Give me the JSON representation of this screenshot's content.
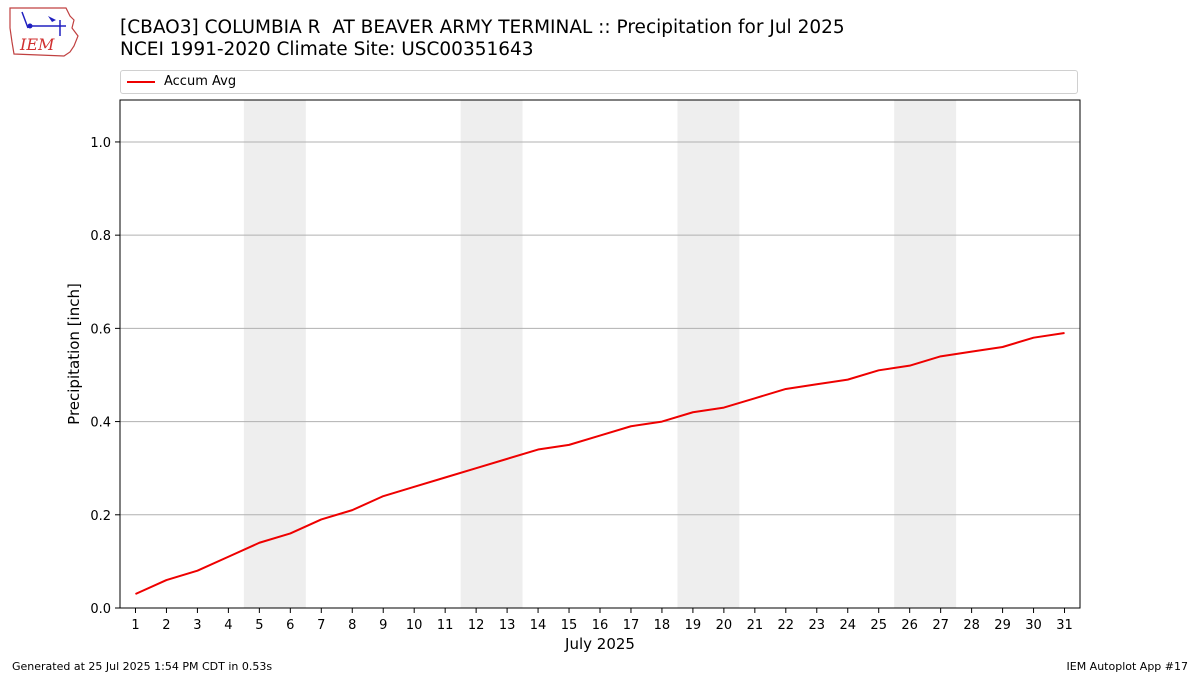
{
  "header": {
    "title_line1": "[CBAO3] COLUMBIA R  AT BEAVER ARMY TERMINAL :: Precipitation for Jul 2025",
    "title_line2": "NCEI 1991-2020 Climate Site: USC00351643",
    "logo_text": "IEM"
  },
  "footer": {
    "generated": "Generated at 25 Jul 2025 1:54 PM CDT in 0.53s",
    "app": "IEM Autoplot App #17"
  },
  "colors": {
    "series": "#ee0000",
    "weekend_band": "#eeeeee",
    "grid": "#b0b0b0"
  },
  "chart_data": {
    "type": "line",
    "xlabel": "July 2025",
    "ylabel": "Precipitation [inch]",
    "xlim": [
      0.5,
      31.5
    ],
    "ylim": [
      0,
      1.09
    ],
    "yticks": [
      0.0,
      0.2,
      0.4,
      0.6,
      0.8,
      1.0
    ],
    "ytick_labels": [
      "0.0",
      "0.2",
      "0.4",
      "0.6",
      "0.8",
      "1.0"
    ],
    "x": [
      1,
      2,
      3,
      4,
      5,
      6,
      7,
      8,
      9,
      10,
      11,
      12,
      13,
      14,
      15,
      16,
      17,
      18,
      19,
      20,
      21,
      22,
      23,
      24,
      25,
      26,
      27,
      28,
      29,
      30,
      31
    ],
    "grid": "horizontal",
    "legend_position": "top",
    "shaded_days": [
      [
        5,
        6
      ],
      [
        12,
        13
      ],
      [
        19,
        20
      ],
      [
        26,
        27
      ]
    ],
    "series": [
      {
        "name": "Accum Avg",
        "values": [
          0.03,
          0.06,
          0.08,
          0.11,
          0.14,
          0.16,
          0.19,
          0.21,
          0.24,
          0.26,
          0.28,
          0.3,
          0.32,
          0.34,
          0.35,
          0.37,
          0.39,
          0.4,
          0.42,
          0.43,
          0.45,
          0.47,
          0.48,
          0.49,
          0.51,
          0.52,
          0.54,
          0.55,
          0.56,
          0.58,
          0.59
        ]
      }
    ]
  }
}
